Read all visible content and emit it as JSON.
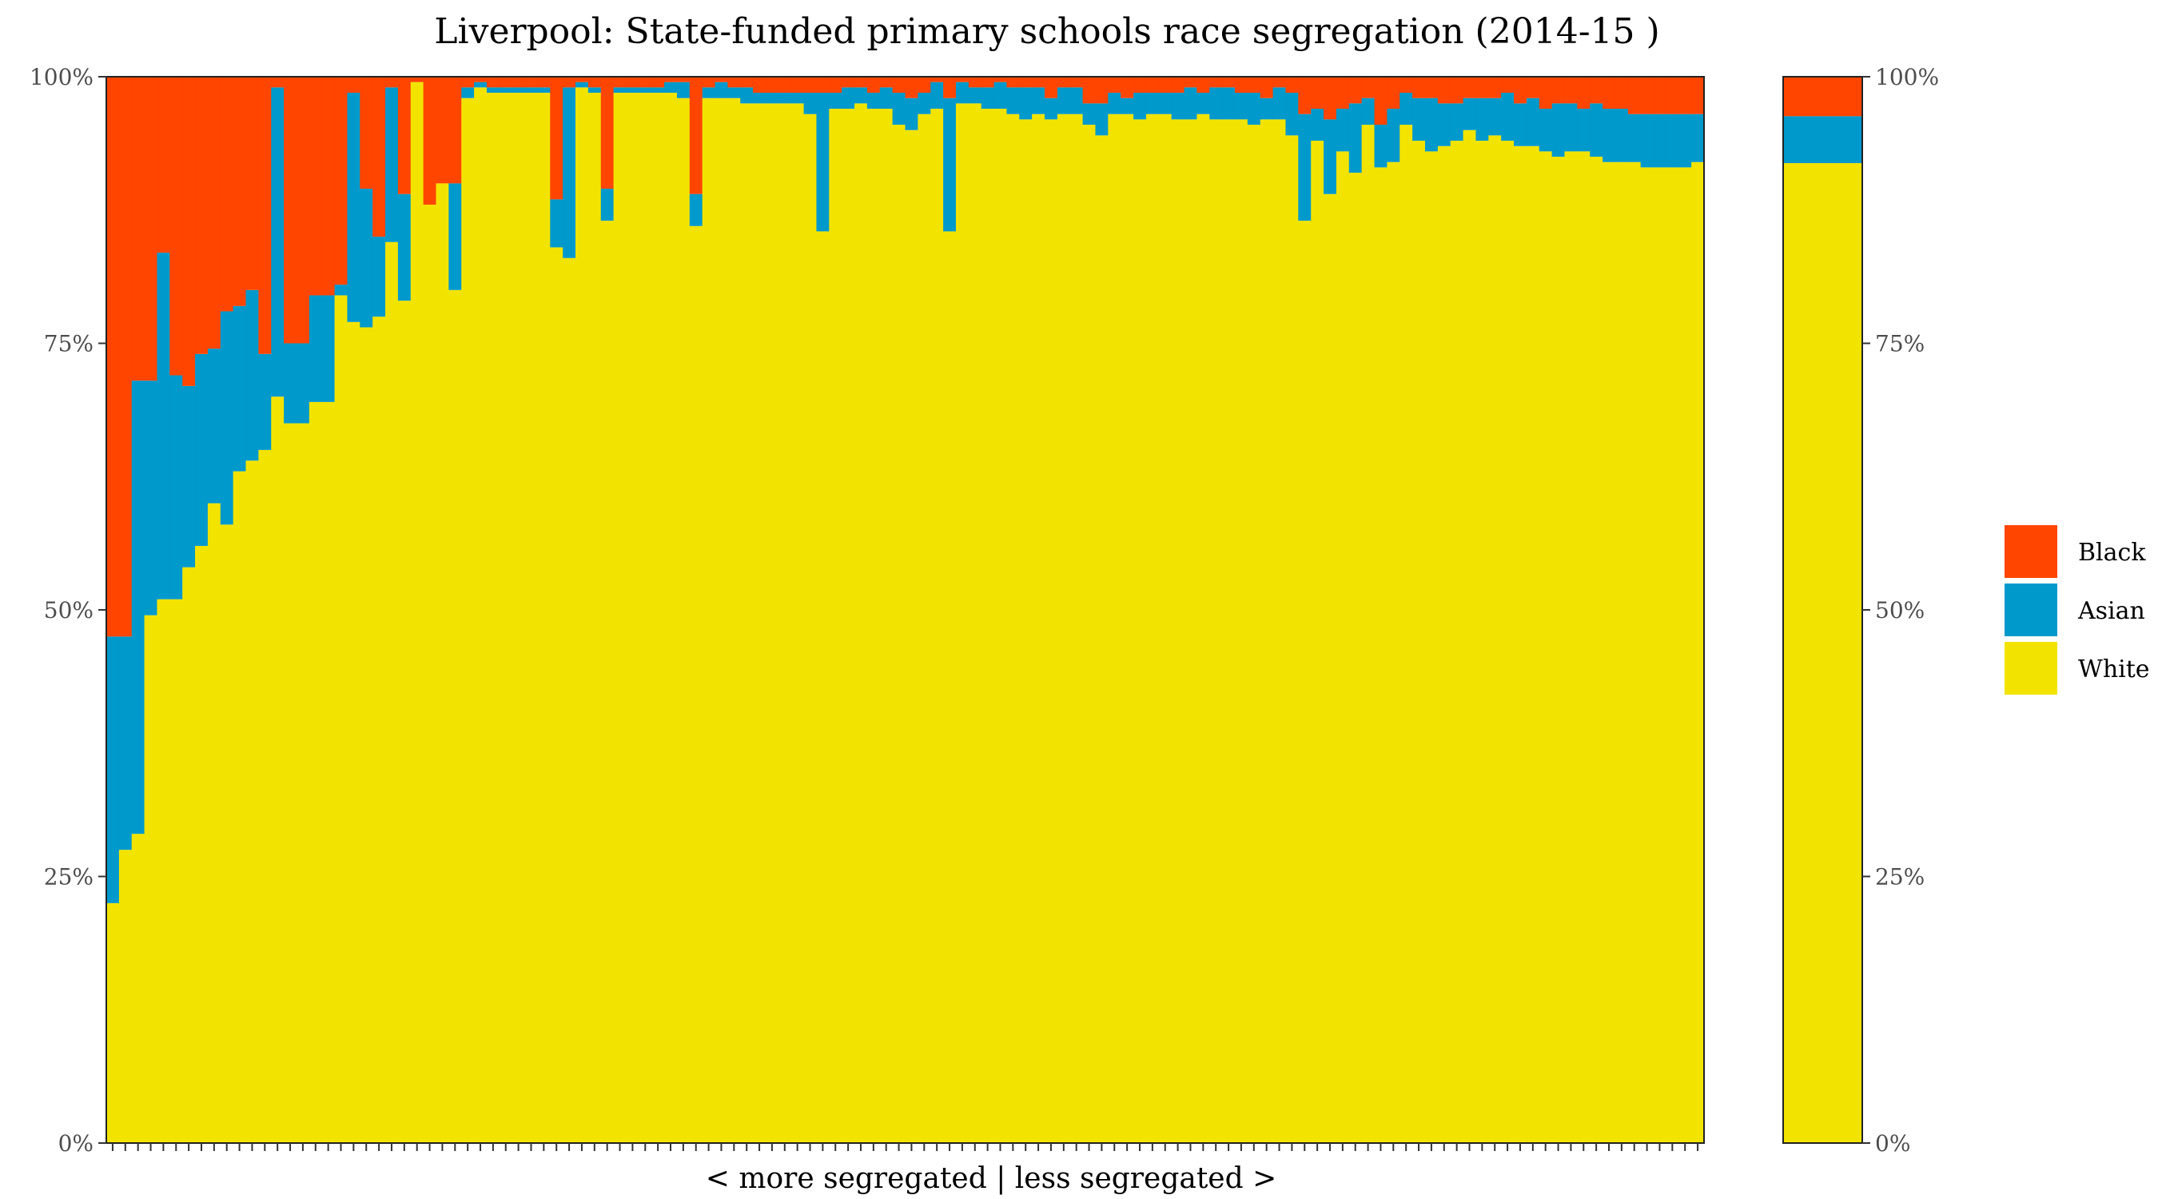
{
  "chart_data": {
    "type": "bar",
    "stacked": true,
    "title": "Liverpool: State-funded primary schools race segregation (2014-15 )",
    "xlabel": "< more segregated | less segregated >",
    "ylabel": "",
    "ylim": [
      0,
      1
    ],
    "y_ticks": [
      "0%",
      "25%",
      "50%",
      "75%",
      "100%"
    ],
    "legend": {
      "placement": "right",
      "entries": [
        "Black",
        "Asian",
        "White"
      ]
    },
    "colors": {
      "Black": "#ff4500",
      "Asian": "#0099cc",
      "White": "#f2e400"
    },
    "series_order_bottom_to_top": [
      "White",
      "Asian",
      "Black"
    ],
    "schools_white_asian_bars": [
      [
        22.5,
        25
      ],
      [
        27.5,
        20
      ],
      [
        29,
        42.5
      ],
      [
        49.5,
        22
      ],
      [
        51,
        32.5
      ],
      [
        51,
        21
      ],
      [
        54,
        17
      ],
      [
        56,
        18
      ],
      [
        60,
        14.5
      ],
      [
        58,
        20
      ],
      [
        63,
        15.5
      ],
      [
        64,
        16
      ],
      [
        65,
        9
      ],
      [
        70,
        29
      ],
      [
        67.5,
        7.5
      ],
      [
        67.5,
        7.5
      ],
      [
        69.5,
        10
      ],
      [
        69.5,
        10
      ],
      [
        79.5,
        1
      ],
      [
        77,
        21.5
      ],
      [
        76.5,
        13
      ],
      [
        77.5,
        7.5
      ],
      [
        84.5,
        14.5
      ],
      [
        79,
        10
      ],
      [
        99.5,
        0
      ],
      [
        88,
        0
      ],
      [
        90,
        0
      ],
      [
        80,
        10
      ],
      [
        98,
        1
      ],
      [
        99,
        0.5
      ],
      [
        98.5,
        0.5
      ],
      [
        98.5,
        0.5
      ],
      [
        98.5,
        0.5
      ],
      [
        98.5,
        0.5
      ],
      [
        98.5,
        0.5
      ],
      [
        84,
        4.5
      ],
      [
        83,
        16
      ],
      [
        99,
        0.5
      ],
      [
        98.5,
        0.5
      ],
      [
        86.5,
        3
      ],
      [
        98.5,
        0.5
      ],
      [
        98.5,
        0.5
      ],
      [
        98.5,
        0.5
      ],
      [
        98.5,
        0.5
      ],
      [
        98.5,
        1
      ],
      [
        98,
        1.5
      ],
      [
        86,
        3
      ],
      [
        98,
        1
      ],
      [
        98,
        1.5
      ],
      [
        98,
        1
      ],
      [
        97.5,
        1.5
      ],
      [
        97.5,
        1
      ],
      [
        97.5,
        1
      ],
      [
        97.5,
        1
      ],
      [
        97.5,
        1
      ],
      [
        96.5,
        2
      ],
      [
        85.5,
        13
      ],
      [
        97,
        1.5
      ],
      [
        97,
        2
      ],
      [
        97.5,
        1.5
      ],
      [
        97,
        1.5
      ],
      [
        97,
        2
      ],
      [
        95.5,
        3
      ],
      [
        95,
        3
      ],
      [
        96.5,
        2
      ],
      [
        97,
        2.5
      ],
      [
        85.5,
        12.5
      ],
      [
        97.5,
        2
      ],
      [
        97.5,
        1.5
      ],
      [
        97,
        2
      ],
      [
        97,
        2.5
      ],
      [
        96.5,
        2.5
      ],
      [
        96,
        3
      ],
      [
        96.5,
        2.5
      ],
      [
        96,
        2
      ],
      [
        96.5,
        2.5
      ],
      [
        96.5,
        2.5
      ],
      [
        95.5,
        2
      ],
      [
        94.5,
        3
      ],
      [
        96.5,
        2
      ],
      [
        96.5,
        1.5
      ],
      [
        96,
        2.5
      ],
      [
        96.5,
        2
      ],
      [
        96.5,
        2
      ],
      [
        96,
        2.5
      ],
      [
        96,
        3
      ],
      [
        96.5,
        2
      ],
      [
        96,
        3
      ],
      [
        96,
        3
      ],
      [
        96,
        2.5
      ],
      [
        95.5,
        3
      ],
      [
        96,
        2
      ],
      [
        96,
        3
      ],
      [
        94.5,
        4
      ],
      [
        86.5,
        10
      ],
      [
        94,
        3
      ],
      [
        89,
        7
      ],
      [
        93,
        4
      ],
      [
        91,
        6.5
      ],
      [
        95.5,
        2.5
      ],
      [
        91.5,
        4
      ],
      [
        92,
        5
      ],
      [
        95.5,
        3
      ],
      [
        94,
        4
      ],
      [
        93,
        5
      ],
      [
        93.5,
        4
      ],
      [
        94,
        3.5
      ],
      [
        95,
        3
      ],
      [
        94,
        4
      ],
      [
        94.5,
        3.5
      ],
      [
        94,
        4.5
      ],
      [
        93.5,
        4
      ],
      [
        93.5,
        4.5
      ],
      [
        93,
        4
      ],
      [
        92.5,
        5
      ],
      [
        93,
        4.5
      ],
      [
        93,
        4
      ],
      [
        92.5,
        5
      ],
      [
        92,
        5
      ],
      [
        92,
        5
      ],
      [
        92,
        4.5
      ],
      [
        91.5,
        5
      ],
      [
        91.5,
        5
      ],
      [
        91.5,
        5
      ],
      [
        91.5,
        5
      ],
      [
        92,
        4.5
      ]
    ],
    "aggregate_bar": {
      "White": 91.9,
      "Asian": 4.4,
      "Black": 3.7
    }
  }
}
